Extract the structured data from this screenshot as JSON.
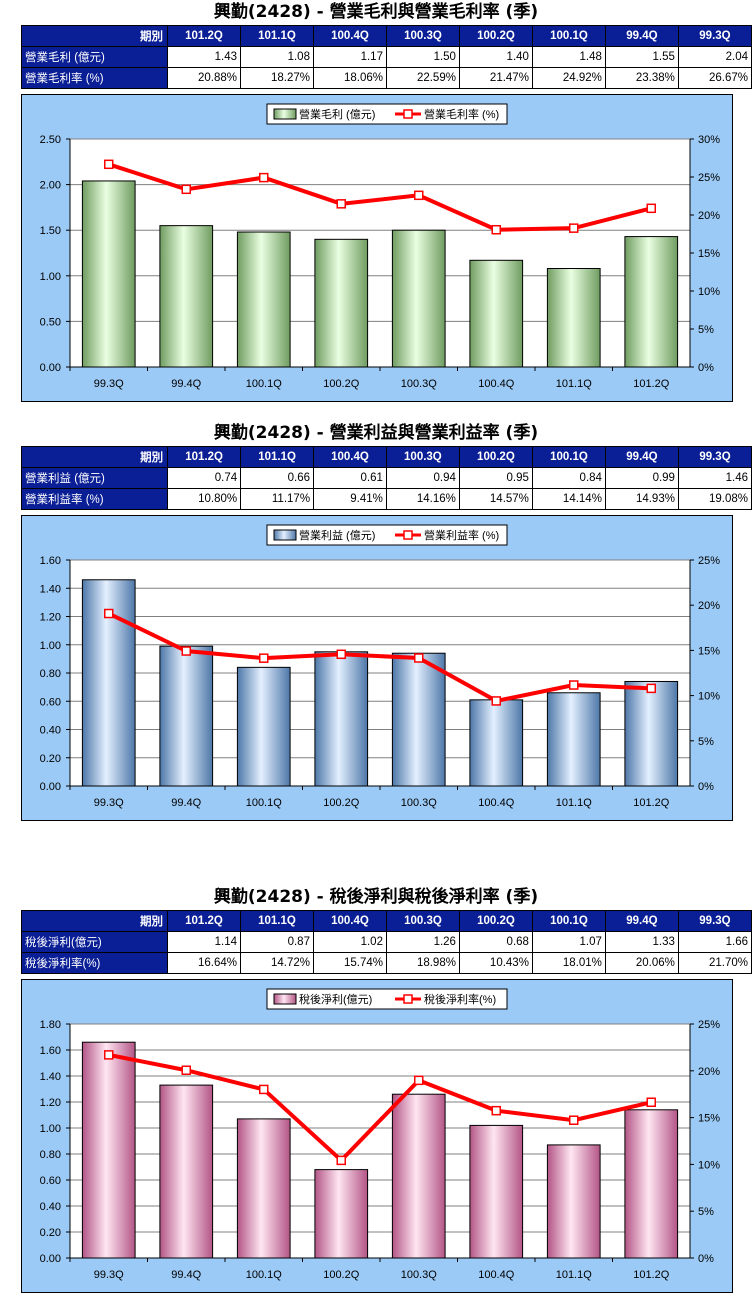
{
  "charts": [
    {
      "title": "興勤(2428) - 營業毛利與營業毛利率 (季)",
      "table": {
        "header_label": "期別",
        "periods": [
          "101.2Q",
          "101.1Q",
          "100.4Q",
          "100.3Q",
          "100.2Q",
          "100.1Q",
          "99.4Q",
          "99.3Q"
        ],
        "rows": [
          {
            "label": "營業毛利 (億元)",
            "values": [
              "1.43",
              "1.08",
              "1.17",
              "1.50",
              "1.40",
              "1.48",
              "1.55",
              "2.04"
            ]
          },
          {
            "label": "營業毛利率 (%)",
            "values": [
              "20.88%",
              "18.27%",
              "18.06%",
              "22.59%",
              "21.47%",
              "24.92%",
              "23.38%",
              "26.67%"
            ]
          }
        ]
      },
      "legend": {
        "bar": "營業毛利 (億元)",
        "line": "營業毛利率 (%)"
      },
      "colors": {
        "bar_light": "#eaffe2",
        "bar_mid": "#b9e8a8",
        "bar_dark": "#6f9c60",
        "line": "#ff0000"
      },
      "left_ticks": [
        "0.00",
        "0.50",
        "1.00",
        "1.50",
        "2.00",
        "2.50"
      ],
      "right_ticks": [
        "0%",
        "5%",
        "10%",
        "15%",
        "20%",
        "25%",
        "30%"
      ]
    },
    {
      "title": "興勤(2428) - 營業利益與營業利益率 (季)",
      "table": {
        "header_label": "期別",
        "periods": [
          "101.2Q",
          "101.1Q",
          "100.4Q",
          "100.3Q",
          "100.2Q",
          "100.1Q",
          "99.4Q",
          "99.3Q"
        ],
        "rows": [
          {
            "label": "營業利益 (億元)",
            "values": [
              "0.74",
              "0.66",
              "0.61",
              "0.94",
              "0.95",
              "0.84",
              "0.99",
              "1.46"
            ]
          },
          {
            "label": "營業利益率 (%)",
            "values": [
              "10.80%",
              "11.17%",
              "9.41%",
              "14.16%",
              "14.57%",
              "14.14%",
              "14.93%",
              "19.08%"
            ]
          }
        ]
      },
      "legend": {
        "bar": "營業利益 (億元)",
        "line": "營業利益率 (%)"
      },
      "colors": {
        "bar_light": "#e4f0ff",
        "bar_mid": "#9ec2ec",
        "bar_dark": "#4d77a8",
        "line": "#ff0000"
      },
      "left_ticks": [
        "0.00",
        "0.20",
        "0.40",
        "0.60",
        "0.80",
        "1.00",
        "1.20",
        "1.40",
        "1.60"
      ],
      "right_ticks": [
        "0%",
        "5%",
        "10%",
        "15%",
        "20%",
        "25%"
      ]
    },
    {
      "title": "興勤(2428) - 稅後淨利與稅後淨利率 (季)",
      "table": {
        "header_label": "期別",
        "periods": [
          "101.2Q",
          "101.1Q",
          "100.4Q",
          "100.3Q",
          "100.2Q",
          "100.1Q",
          "99.4Q",
          "99.3Q"
        ],
        "rows": [
          {
            "label": "稅後淨利(億元)",
            "values": [
              "1.14",
              "0.87",
              "1.02",
              "1.26",
              "0.68",
              "1.07",
              "1.33",
              "1.66"
            ]
          },
          {
            "label": "稅後淨利率(%)",
            "values": [
              "16.64%",
              "14.72%",
              "15.74%",
              "18.98%",
              "10.43%",
              "18.01%",
              "20.06%",
              "21.70%"
            ]
          }
        ]
      },
      "legend": {
        "bar": "稅後淨利(億元)",
        "line": "稅後淨利率(%)"
      },
      "colors": {
        "bar_light": "#ffe6f2",
        "bar_mid": "#f39ccb",
        "bar_dark": "#b35586",
        "line": "#ff0000"
      },
      "left_ticks": [
        "0.00",
        "0.20",
        "0.40",
        "0.60",
        "0.80",
        "1.00",
        "1.20",
        "1.40",
        "1.60",
        "1.80"
      ],
      "right_ticks": [
        "0%",
        "5%",
        "10%",
        "15%",
        "20%",
        "25%"
      ]
    }
  ],
  "chart_data": [
    {
      "type": "bar",
      "title": "興勤(2428) - 營業毛利與營業毛利率 (季)",
      "categories": [
        "99.3Q",
        "99.4Q",
        "100.1Q",
        "100.2Q",
        "100.3Q",
        "100.4Q",
        "101.1Q",
        "101.2Q"
      ],
      "series": [
        {
          "name": "營業毛利 (億元)",
          "type": "bar",
          "axis": "left",
          "values": [
            2.04,
            1.55,
            1.48,
            1.4,
            1.5,
            1.17,
            1.08,
            1.43
          ]
        },
        {
          "name": "營業毛利率 (%)",
          "type": "line",
          "axis": "right",
          "values": [
            26.67,
            23.38,
            24.92,
            21.47,
            22.59,
            18.06,
            18.27,
            20.88
          ]
        }
      ],
      "ylim": [
        0,
        2.5
      ],
      "y2lim": [
        0,
        30
      ],
      "grid": true,
      "legend": "top-center"
    },
    {
      "type": "bar",
      "title": "興勤(2428) - 營業利益與營業利益率 (季)",
      "categories": [
        "99.3Q",
        "99.4Q",
        "100.1Q",
        "100.2Q",
        "100.3Q",
        "100.4Q",
        "101.1Q",
        "101.2Q"
      ],
      "series": [
        {
          "name": "營業利益 (億元)",
          "type": "bar",
          "axis": "left",
          "values": [
            1.46,
            0.99,
            0.84,
            0.95,
            0.94,
            0.61,
            0.66,
            0.74
          ]
        },
        {
          "name": "營業利益率 (%)",
          "type": "line",
          "axis": "right",
          "values": [
            19.08,
            14.93,
            14.14,
            14.57,
            14.16,
            9.41,
            11.17,
            10.8
          ]
        }
      ],
      "ylim": [
        0,
        1.6
      ],
      "y2lim": [
        0,
        25
      ],
      "grid": true,
      "legend": "top-center"
    },
    {
      "type": "bar",
      "title": "興勤(2428) - 稅後淨利與稅後淨利率 (季)",
      "categories": [
        "99.3Q",
        "99.4Q",
        "100.1Q",
        "100.2Q",
        "100.3Q",
        "100.4Q",
        "101.1Q",
        "101.2Q"
      ],
      "series": [
        {
          "name": "稅後淨利(億元)",
          "type": "bar",
          "axis": "left",
          "values": [
            1.66,
            1.33,
            1.07,
            0.68,
            1.26,
            1.02,
            0.87,
            1.14
          ]
        },
        {
          "name": "稅後淨利率(%)",
          "type": "line",
          "axis": "right",
          "values": [
            21.7,
            20.06,
            18.01,
            10.43,
            18.98,
            15.74,
            14.72,
            16.64
          ]
        }
      ],
      "ylim": [
        0,
        1.8
      ],
      "y2lim": [
        0,
        25
      ],
      "grid": true,
      "legend": "top-center"
    }
  ]
}
